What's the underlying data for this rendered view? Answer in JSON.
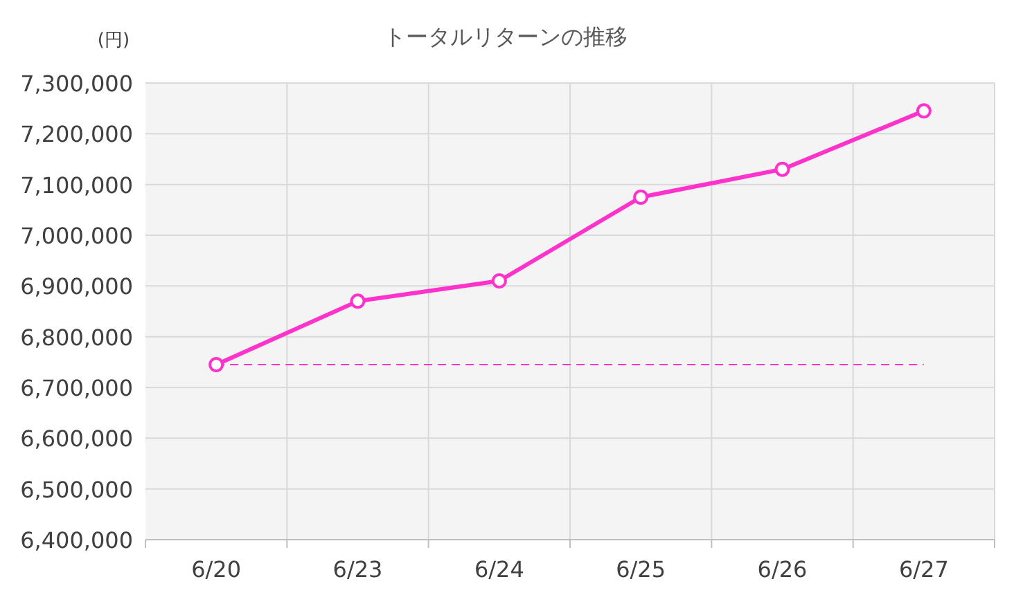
{
  "chart_data": {
    "type": "line",
    "title": "トータルリターンの推移",
    "ylabel": "(円)",
    "categories": [
      "6/20",
      "6/23",
      "6/24",
      "6/25",
      "6/26",
      "6/27"
    ],
    "series": [
      {
        "color": "#ff33cc",
        "values": [
          6745000,
          6870000,
          6910000,
          7075000,
          7130000,
          7245000
        ]
      }
    ],
    "ylim": [
      6400000,
      7300000
    ],
    "yticks": [
      {
        "value": 6400000,
        "label": "6,400,000"
      },
      {
        "value": 6500000,
        "label": "6,500,000"
      },
      {
        "value": 6600000,
        "label": "6,600,000"
      },
      {
        "value": 6700000,
        "label": "6,700,000"
      },
      {
        "value": 6800000,
        "label": "6,800,000"
      },
      {
        "value": 6900000,
        "label": "6,900,000"
      },
      {
        "value": 7000000,
        "label": "7,000,000"
      },
      {
        "value": 7100000,
        "label": "7,100,000"
      },
      {
        "value": 7200000,
        "label": "7,200,000"
      },
      {
        "value": 7300000,
        "label": "7,300,000"
      }
    ],
    "ref_lines": [
      {
        "axis": "y",
        "value": 6745000,
        "color": "#ff33cc",
        "line_style": "dashed"
      }
    ],
    "grid": true,
    "marker": "circle",
    "line_style": "solid"
  }
}
